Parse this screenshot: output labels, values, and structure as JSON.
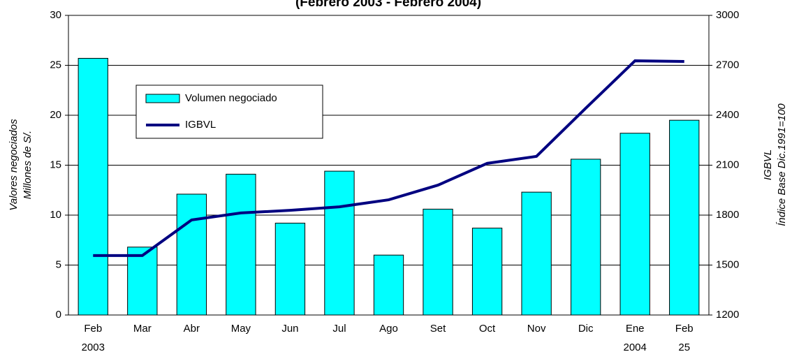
{
  "chart_data": {
    "type": "bar_line",
    "title": "(Febrero 2003 - Febrero 2004)",
    "y_label": [
      "Valores negociados",
      "Millones de S/."
    ],
    "y2_label": [
      "IGBVL",
      "Índice Base Dic.1991=100"
    ],
    "categories": [
      "Feb",
      "Mar",
      "Abr",
      "May",
      "Jun",
      "Jul",
      "Ago",
      "Set",
      "Oct",
      "Nov",
      "Dic",
      "Ene",
      "Feb"
    ],
    "x_sublabels": [
      "2003",
      null,
      null,
      null,
      null,
      null,
      null,
      null,
      null,
      null,
      null,
      "2004",
      "25"
    ],
    "series": [
      {
        "name": "Volumen negociado",
        "color": "#00ffff",
        "kind": "bar",
        "values": [
          25.7,
          6.8,
          12.1,
          14.1,
          9.2,
          14.4,
          6.0,
          10.6,
          8.7,
          12.3,
          15.6,
          18.2,
          19.5
        ]
      },
      {
        "name": "IGBVL",
        "color": "#000080",
        "kind": "line",
        "axis": "y2",
        "values": [
          1557,
          1557,
          1771,
          1813,
          1829,
          1850,
          1892,
          1980,
          2111,
          2153,
          2442,
          2727,
          2723
        ]
      }
    ],
    "ylim": [
      0,
      30
    ],
    "yticks": [
      0,
      5,
      10,
      15,
      20,
      25,
      30
    ],
    "y2lim": [
      1200,
      3000
    ],
    "y2ticks": [
      1200,
      1500,
      1800,
      2100,
      2400,
      2700,
      3000
    ],
    "grid": true,
    "legend": "upper-left"
  }
}
